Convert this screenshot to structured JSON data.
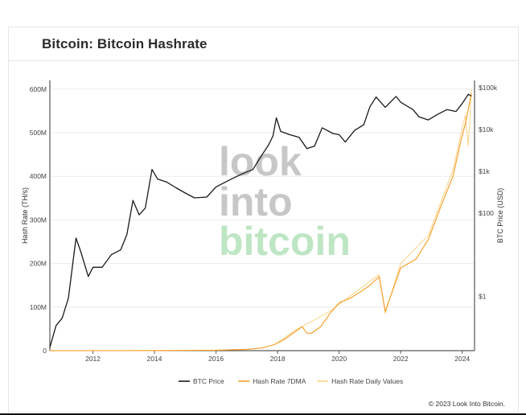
{
  "title": "Bitcoin: Bitcoin Hashrate",
  "credit": "© 2023 Look Into Bitcoin.",
  "watermark": [
    "look",
    "into",
    "bitcoin"
  ],
  "colors": {
    "btc_price": "#1a1a1a",
    "hash_rate_7dma": "#f7a12e",
    "hash_rate_daily": "#f9d48a",
    "watermark_gray": "#c7c7c7",
    "watermark_green": "#bfe6c4"
  },
  "chart_data": {
    "type": "line",
    "title": "Bitcoin: Bitcoin Hashrate",
    "xlabel": "",
    "ylabel_left": "Hash Rate (TH/s)",
    "ylabel_right": "BTC Price (USD)",
    "x_ticks": [
      "2012",
      "2014",
      "2016",
      "2018",
      "2020",
      "2022",
      "2024"
    ],
    "xlim": [
      2010.6,
      2024.4
    ],
    "y_left_ticks": [
      {
        "v": 0,
        "label": "0"
      },
      {
        "v": 100,
        "label": "100M"
      },
      {
        "v": 200,
        "label": "200M"
      },
      {
        "v": 300,
        "label": "300M"
      },
      {
        "v": 400,
        "label": "400M"
      },
      {
        "v": 500,
        "label": "500M"
      },
      {
        "v": 600,
        "label": "600M"
      }
    ],
    "ylim_left": [
      0,
      620
    ],
    "y_right_ticks": [
      {
        "v": 1,
        "label": "$1"
      },
      {
        "v": 100,
        "label": "$100"
      },
      {
        "v": 1000,
        "label": "$1k"
      },
      {
        "v": 10000,
        "label": "$10k"
      },
      {
        "v": 100000,
        "label": "$100k"
      }
    ],
    "ylim_right_log": [
      0.05,
      150000
    ],
    "grid": true,
    "legend_position": "bottom",
    "series": [
      {
        "name": "BTC Price",
        "axis": "right",
        "points": [
          [
            2010.6,
            0.06
          ],
          [
            2010.8,
            0.2
          ],
          [
            2011.0,
            0.3
          ],
          [
            2011.2,
            0.9
          ],
          [
            2011.45,
            25
          ],
          [
            2011.6,
            12
          ],
          [
            2011.85,
            3
          ],
          [
            2012.0,
            5
          ],
          [
            2012.3,
            5
          ],
          [
            2012.6,
            10
          ],
          [
            2012.9,
            13
          ],
          [
            2013.1,
            30
          ],
          [
            2013.3,
            200
          ],
          [
            2013.5,
            90
          ],
          [
            2013.7,
            130
          ],
          [
            2013.92,
            1100
          ],
          [
            2014.1,
            650
          ],
          [
            2014.4,
            550
          ],
          [
            2014.7,
            400
          ],
          [
            2015.0,
            300
          ],
          [
            2015.3,
            230
          ],
          [
            2015.7,
            240
          ],
          [
            2016.0,
            420
          ],
          [
            2016.5,
            650
          ],
          [
            2016.9,
            900
          ],
          [
            2017.2,
            1100
          ],
          [
            2017.5,
            2500
          ],
          [
            2017.7,
            4200
          ],
          [
            2017.85,
            7000
          ],
          [
            2017.96,
            19000
          ],
          [
            2018.1,
            9000
          ],
          [
            2018.4,
            7500
          ],
          [
            2018.7,
            6500
          ],
          [
            2018.95,
            3500
          ],
          [
            2019.2,
            4000
          ],
          [
            2019.45,
            11000
          ],
          [
            2019.8,
            8000
          ],
          [
            2020.0,
            7500
          ],
          [
            2020.2,
            5000
          ],
          [
            2020.5,
            9500
          ],
          [
            2020.8,
            13000
          ],
          [
            2021.0,
            35000
          ],
          [
            2021.2,
            60000
          ],
          [
            2021.5,
            34000
          ],
          [
            2021.85,
            62000
          ],
          [
            2022.0,
            45000
          ],
          [
            2022.4,
            30000
          ],
          [
            2022.6,
            20000
          ],
          [
            2022.9,
            17000
          ],
          [
            2023.2,
            23000
          ],
          [
            2023.5,
            30000
          ],
          [
            2023.8,
            27000
          ],
          [
            2024.0,
            42000
          ],
          [
            2024.2,
            70000
          ],
          [
            2024.3,
            63000
          ]
        ]
      },
      {
        "name": "Hash Rate 7DMA",
        "axis": "left",
        "points": [
          [
            2010.6,
            0
          ],
          [
            2014.0,
            0.1
          ],
          [
            2016.0,
            1
          ],
          [
            2017.0,
            3
          ],
          [
            2017.5,
            6
          ],
          [
            2017.9,
            14
          ],
          [
            2018.2,
            25
          ],
          [
            2018.6,
            45
          ],
          [
            2018.8,
            55
          ],
          [
            2018.95,
            40
          ],
          [
            2019.1,
            40
          ],
          [
            2019.4,
            55
          ],
          [
            2019.7,
            85
          ],
          [
            2020.0,
            110
          ],
          [
            2020.35,
            120
          ],
          [
            2020.7,
            135
          ],
          [
            2021.0,
            150
          ],
          [
            2021.3,
            170
          ],
          [
            2021.5,
            90
          ],
          [
            2021.7,
            130
          ],
          [
            2022.0,
            190
          ],
          [
            2022.5,
            210
          ],
          [
            2022.9,
            255
          ],
          [
            2023.3,
            330
          ],
          [
            2023.7,
            400
          ],
          [
            2023.95,
            480
          ],
          [
            2024.1,
            520
          ],
          [
            2024.3,
            590
          ]
        ]
      },
      {
        "name": "Hash Rate Daily Values",
        "axis": "left",
        "points": [
          [
            2017.9,
            14
          ],
          [
            2018.6,
            48
          ],
          [
            2019.7,
            90
          ],
          [
            2020.35,
            125
          ],
          [
            2021.3,
            175
          ],
          [
            2021.5,
            85
          ],
          [
            2022.0,
            200
          ],
          [
            2022.9,
            265
          ],
          [
            2023.7,
            415
          ],
          [
            2023.95,
            495
          ],
          [
            2024.1,
            540
          ],
          [
            2024.2,
            470
          ],
          [
            2024.3,
            600
          ]
        ]
      }
    ]
  }
}
